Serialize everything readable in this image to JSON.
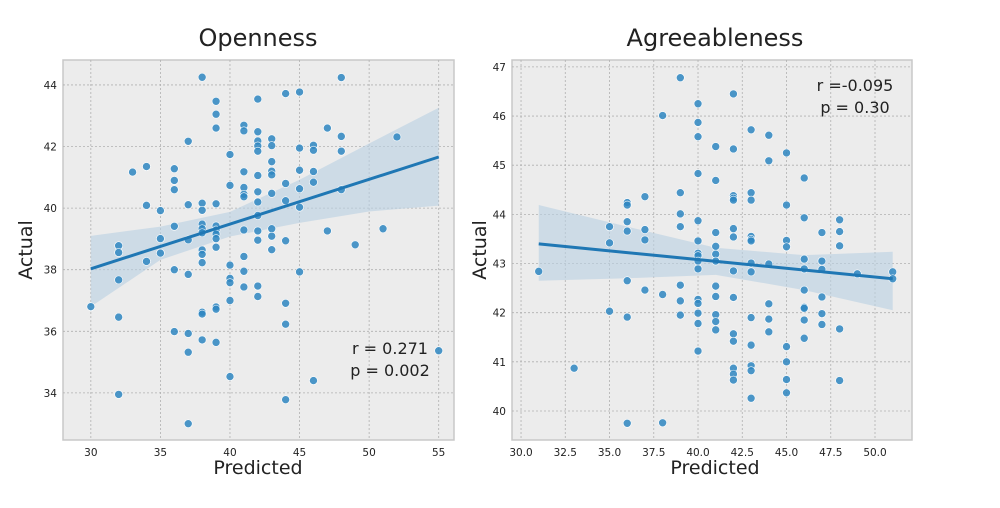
{
  "chart_data": [
    {
      "type": "scatter",
      "title": "Openness",
      "xlabel": "Predicted",
      "ylabel": "Actual",
      "xlim": [
        28.0,
        56.1
      ],
      "ylim": [
        32.47,
        44.81
      ],
      "xticks": [
        30,
        35,
        40,
        45,
        50,
        55
      ],
      "xtick_labels": [
        "30",
        "35",
        "40",
        "45",
        "50",
        "55"
      ],
      "yticks": [
        34,
        36,
        38,
        40,
        42,
        44
      ],
      "ytick_labels": [
        "34",
        "36",
        "38",
        "40",
        "42",
        "44"
      ],
      "grid": true,
      "annotation": [
        "r = 0.271",
        "p = 0.002"
      ],
      "annotation_placement": "bottom-right",
      "regression": {
        "x": [
          30,
          55
        ],
        "y": [
          38.03,
          41.66
        ]
      },
      "ci": {
        "x": [
          30,
          35,
          40,
          45,
          50,
          55
        ],
        "lower": [
          36.8,
          38.32,
          39.08,
          39.52,
          39.89,
          40.08
        ],
        "upper": [
          39.1,
          39.4,
          39.88,
          40.92,
          42.1,
          43.26
        ]
      },
      "points": [
        [
          30,
          36.8
        ],
        [
          32,
          38.78
        ],
        [
          32,
          38.56
        ],
        [
          32,
          37.67
        ],
        [
          32,
          36.46
        ],
        [
          32,
          33.95
        ],
        [
          33,
          41.17
        ],
        [
          34,
          41.35
        ],
        [
          34,
          40.09
        ],
        [
          34,
          38.27
        ],
        [
          35,
          39.92
        ],
        [
          35,
          39.01
        ],
        [
          35,
          38.54
        ],
        [
          36,
          41.28
        ],
        [
          36,
          40.9
        ],
        [
          36,
          40.6
        ],
        [
          36,
          39.41
        ],
        [
          36,
          38.0
        ],
        [
          36,
          35.99
        ],
        [
          37,
          42.17
        ],
        [
          37,
          40.11
        ],
        [
          37,
          38.97
        ],
        [
          37,
          37.85
        ],
        [
          37,
          35.93
        ],
        [
          37,
          35.32
        ],
        [
          37,
          33.0
        ],
        [
          38,
          44.25
        ],
        [
          38,
          40.16
        ],
        [
          38,
          39.93
        ],
        [
          38,
          39.48
        ],
        [
          38,
          39.33
        ],
        [
          38,
          39.2
        ],
        [
          38,
          38.64
        ],
        [
          38,
          38.5
        ],
        [
          38,
          38.23
        ],
        [
          38,
          36.62
        ],
        [
          38,
          36.56
        ],
        [
          38,
          35.72
        ],
        [
          39,
          43.47
        ],
        [
          39,
          43.05
        ],
        [
          39,
          42.6
        ],
        [
          39,
          40.14
        ],
        [
          39,
          39.42
        ],
        [
          39,
          39.29
        ],
        [
          39,
          39.16
        ],
        [
          39,
          39.01
        ],
        [
          39,
          38.73
        ],
        [
          39,
          36.79
        ],
        [
          39,
          36.72
        ],
        [
          39,
          35.64
        ],
        [
          40,
          41.74
        ],
        [
          40,
          40.74
        ],
        [
          40,
          38.15
        ],
        [
          40,
          37.72
        ],
        [
          40,
          37.58
        ],
        [
          40,
          37.0
        ],
        [
          40,
          34.53
        ],
        [
          41,
          42.69
        ],
        [
          41,
          42.51
        ],
        [
          41,
          41.18
        ],
        [
          41,
          40.67
        ],
        [
          41,
          40.45
        ],
        [
          41,
          40.37
        ],
        [
          41,
          39.29
        ],
        [
          41,
          38.43
        ],
        [
          41,
          37.95
        ],
        [
          41,
          37.44
        ],
        [
          42,
          43.54
        ],
        [
          42,
          42.48
        ],
        [
          42,
          42.18
        ],
        [
          42,
          42.02
        ],
        [
          42,
          41.85
        ],
        [
          42,
          41.06
        ],
        [
          42,
          40.53
        ],
        [
          42,
          40.2
        ],
        [
          42,
          39.76
        ],
        [
          42,
          39.26
        ],
        [
          42,
          38.96
        ],
        [
          42,
          37.47
        ],
        [
          42,
          37.13
        ],
        [
          43,
          42.25
        ],
        [
          43,
          42.03
        ],
        [
          43,
          41.51
        ],
        [
          43,
          41.2
        ],
        [
          43,
          41.08
        ],
        [
          43,
          40.48
        ],
        [
          43,
          39.33
        ],
        [
          43,
          39.09
        ],
        [
          43,
          38.65
        ],
        [
          44,
          43.72
        ],
        [
          44,
          40.8
        ],
        [
          44,
          40.24
        ],
        [
          44,
          38.94
        ],
        [
          44,
          36.91
        ],
        [
          44,
          36.23
        ],
        [
          44,
          33.78
        ],
        [
          45,
          43.77
        ],
        [
          45,
          41.95
        ],
        [
          45,
          41.23
        ],
        [
          45,
          40.63
        ],
        [
          45,
          40.03
        ],
        [
          45,
          37.93
        ],
        [
          46,
          42.04
        ],
        [
          46,
          41.88
        ],
        [
          46,
          41.19
        ],
        [
          46,
          40.84
        ],
        [
          46,
          34.4
        ],
        [
          47,
          42.6
        ],
        [
          47,
          39.26
        ],
        [
          48,
          44.24
        ],
        [
          48,
          42.33
        ],
        [
          48,
          41.85
        ],
        [
          48,
          40.6
        ],
        [
          49,
          38.81
        ],
        [
          51,
          39.33
        ],
        [
          52,
          42.31
        ],
        [
          55,
          35.37
        ]
      ]
    },
    {
      "type": "scatter",
      "title": "Agreeableness",
      "xlabel": "Predicted",
      "ylabel": "Actual",
      "xlim": [
        29.49,
        52.09
      ],
      "ylim": [
        39.41,
        47.14
      ],
      "xticks": [
        30,
        32.5,
        35,
        37.5,
        40,
        42.5,
        45,
        47.5,
        50
      ],
      "xtick_labels": [
        "30.0",
        "32.5",
        "35.0",
        "37.5",
        "40.0",
        "42.5",
        "45.0",
        "47.5",
        "50.0"
      ],
      "yticks": [
        40,
        41,
        42,
        43,
        44,
        45,
        46,
        47
      ],
      "ytick_labels": [
        "40",
        "41",
        "42",
        "43",
        "44",
        "45",
        "46",
        "47"
      ],
      "grid": true,
      "annotation": [
        "r =-0.095",
        "p = 0.30"
      ],
      "annotation_placement": "top-right",
      "regression": {
        "x": [
          31,
          51
        ],
        "y": [
          43.4,
          42.69
        ]
      },
      "ci": {
        "x": [
          31,
          36,
          41,
          46,
          51
        ],
        "lower": [
          42.65,
          42.7,
          42.77,
          42.46,
          42.05
        ],
        "upper": [
          44.19,
          43.75,
          43.32,
          43.17,
          43.24
        ]
      },
      "points": [
        [
          31,
          42.84
        ],
        [
          33,
          40.87
        ],
        [
          35,
          43.75
        ],
        [
          35,
          43.42
        ],
        [
          35,
          42.03
        ],
        [
          36,
          44.24
        ],
        [
          36,
          44.19
        ],
        [
          36,
          43.85
        ],
        [
          36,
          43.66
        ],
        [
          36,
          42.65
        ],
        [
          36,
          41.91
        ],
        [
          36,
          39.75
        ],
        [
          37,
          44.36
        ],
        [
          37,
          43.69
        ],
        [
          37,
          43.48
        ],
        [
          37,
          42.46
        ],
        [
          38,
          46.01
        ],
        [
          38,
          42.37
        ],
        [
          38,
          39.76
        ],
        [
          39,
          46.78
        ],
        [
          39,
          44.44
        ],
        [
          39,
          44.01
        ],
        [
          39,
          43.75
        ],
        [
          39,
          42.56
        ],
        [
          39,
          42.24
        ],
        [
          39,
          41.95
        ],
        [
          40,
          46.25
        ],
        [
          40,
          45.87
        ],
        [
          40,
          45.58
        ],
        [
          40,
          44.83
        ],
        [
          40,
          43.87
        ],
        [
          40,
          43.46
        ],
        [
          40,
          43.21
        ],
        [
          40,
          43.16
        ],
        [
          40,
          43.05
        ],
        [
          40,
          42.89
        ],
        [
          40,
          42.27
        ],
        [
          40,
          42.19
        ],
        [
          40,
          41.99
        ],
        [
          40,
          41.78
        ],
        [
          40,
          41.22
        ],
        [
          41,
          45.38
        ],
        [
          41,
          44.69
        ],
        [
          41,
          43.63
        ],
        [
          41,
          43.35
        ],
        [
          41,
          43.19
        ],
        [
          41,
          43.05
        ],
        [
          41,
          42.54
        ],
        [
          41,
          42.33
        ],
        [
          41,
          41.96
        ],
        [
          41,
          41.82
        ],
        [
          41,
          41.65
        ],
        [
          42,
          46.45
        ],
        [
          42,
          45.33
        ],
        [
          42,
          44.38
        ],
        [
          42,
          44.33
        ],
        [
          42,
          44.29
        ],
        [
          42,
          43.71
        ],
        [
          42,
          43.54
        ],
        [
          42,
          42.85
        ],
        [
          42,
          42.31
        ],
        [
          42,
          41.57
        ],
        [
          42,
          41.42
        ],
        [
          42,
          40.87
        ],
        [
          42,
          40.75
        ],
        [
          42,
          40.63
        ],
        [
          43,
          45.72
        ],
        [
          43,
          44.44
        ],
        [
          43,
          44.29
        ],
        [
          43,
          43.55
        ],
        [
          43,
          43.49
        ],
        [
          43,
          43.46
        ],
        [
          43,
          43.01
        ],
        [
          43,
          42.83
        ],
        [
          43,
          41.9
        ],
        [
          43,
          41.34
        ],
        [
          43,
          40.92
        ],
        [
          43,
          40.82
        ],
        [
          43,
          40.26
        ],
        [
          44,
          45.61
        ],
        [
          44,
          45.09
        ],
        [
          44,
          42.99
        ],
        [
          44,
          42.18
        ],
        [
          44,
          41.87
        ],
        [
          44,
          41.61
        ],
        [
          45,
          45.25
        ],
        [
          45,
          44.19
        ],
        [
          45,
          43.47
        ],
        [
          45,
          43.34
        ],
        [
          45,
          41.31
        ],
        [
          45,
          41.0
        ],
        [
          45,
          40.64
        ],
        [
          45,
          40.37
        ],
        [
          46,
          44.74
        ],
        [
          46,
          43.93
        ],
        [
          46,
          43.09
        ],
        [
          46,
          42.89
        ],
        [
          46,
          42.46
        ],
        [
          46,
          42.11
        ],
        [
          46,
          42.09
        ],
        [
          46,
          41.85
        ],
        [
          46,
          41.48
        ],
        [
          47,
          43.63
        ],
        [
          47,
          43.05
        ],
        [
          47,
          42.88
        ],
        [
          47,
          42.32
        ],
        [
          47,
          41.98
        ],
        [
          47,
          41.76
        ],
        [
          48,
          43.89
        ],
        [
          48,
          43.65
        ],
        [
          48,
          43.36
        ],
        [
          48,
          41.67
        ],
        [
          48,
          40.62
        ],
        [
          49,
          42.79
        ],
        [
          51,
          42.83
        ],
        [
          51,
          42.69
        ]
      ]
    }
  ],
  "colors": {
    "points": "#2e86c1",
    "line": "#1f77b4",
    "band": "#b9d1e2",
    "background": "#ececec",
    "grid": "#b0b0b0"
  }
}
